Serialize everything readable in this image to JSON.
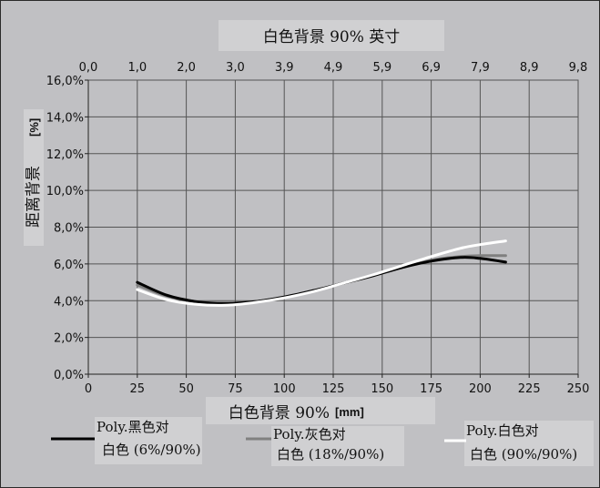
{
  "chart_data": {
    "type": "line",
    "title": "白色背景 90% 英寸",
    "xlabel": "白色背景 90%",
    "xlabel_unit": "[mm]",
    "ylabel": "距离背景",
    "ylabel_unit": "[%]",
    "xlim": [
      0,
      250
    ],
    "ylim": [
      0,
      16
    ],
    "x_ticks": [
      0,
      25,
      50,
      75,
      100,
      125,
      150,
      175,
      200,
      225,
      250
    ],
    "y_ticks": [
      "0,0%",
      "2,0%",
      "4,0%",
      "6,0%",
      "8,0%",
      "10,0%",
      "12,0%",
      "14,0%",
      "16,0%"
    ],
    "top_ticks": [
      "0,0",
      "1,0",
      "2,0",
      "3,0",
      "3,9",
      "4,9",
      "5,9",
      "6,9",
      "7,9",
      "8,9",
      "9,8"
    ],
    "grid": true,
    "legend_position": "bottom",
    "series": [
      {
        "name_line1": "Poly.黑色对",
        "name_line2": "白色 (6%/90%)",
        "color": "#000000",
        "x": [
          25,
          40,
          55,
          70,
          85,
          100,
          115,
          130,
          145,
          160,
          175,
          190,
          200,
          213
        ],
        "y": [
          5.0,
          4.3,
          3.95,
          3.85,
          3.95,
          4.2,
          4.55,
          4.95,
          5.35,
          5.8,
          6.15,
          6.35,
          6.3,
          6.1
        ]
      },
      {
        "name_line1": "Poly.灰色对",
        "name_line2": "白色 (18%/90%)",
        "color": "#808080",
        "x": [
          25,
          40,
          55,
          70,
          85,
          100,
          115,
          130,
          145,
          160,
          175,
          190,
          200,
          213
        ],
        "y": [
          4.85,
          4.25,
          3.95,
          3.85,
          3.95,
          4.2,
          4.55,
          4.95,
          5.35,
          5.8,
          6.2,
          6.4,
          6.45,
          6.45
        ]
      },
      {
        "name_line1": "Poly.白色对",
        "name_line2": "白色 (90%/90%)",
        "color": "#ffffff",
        "x": [
          25,
          40,
          55,
          70,
          85,
          100,
          115,
          130,
          145,
          160,
          175,
          190,
          200,
          213
        ],
        "y": [
          4.6,
          4.05,
          3.8,
          3.75,
          3.9,
          4.15,
          4.5,
          4.95,
          5.4,
          5.9,
          6.4,
          6.85,
          7.05,
          7.25
        ]
      }
    ]
  }
}
